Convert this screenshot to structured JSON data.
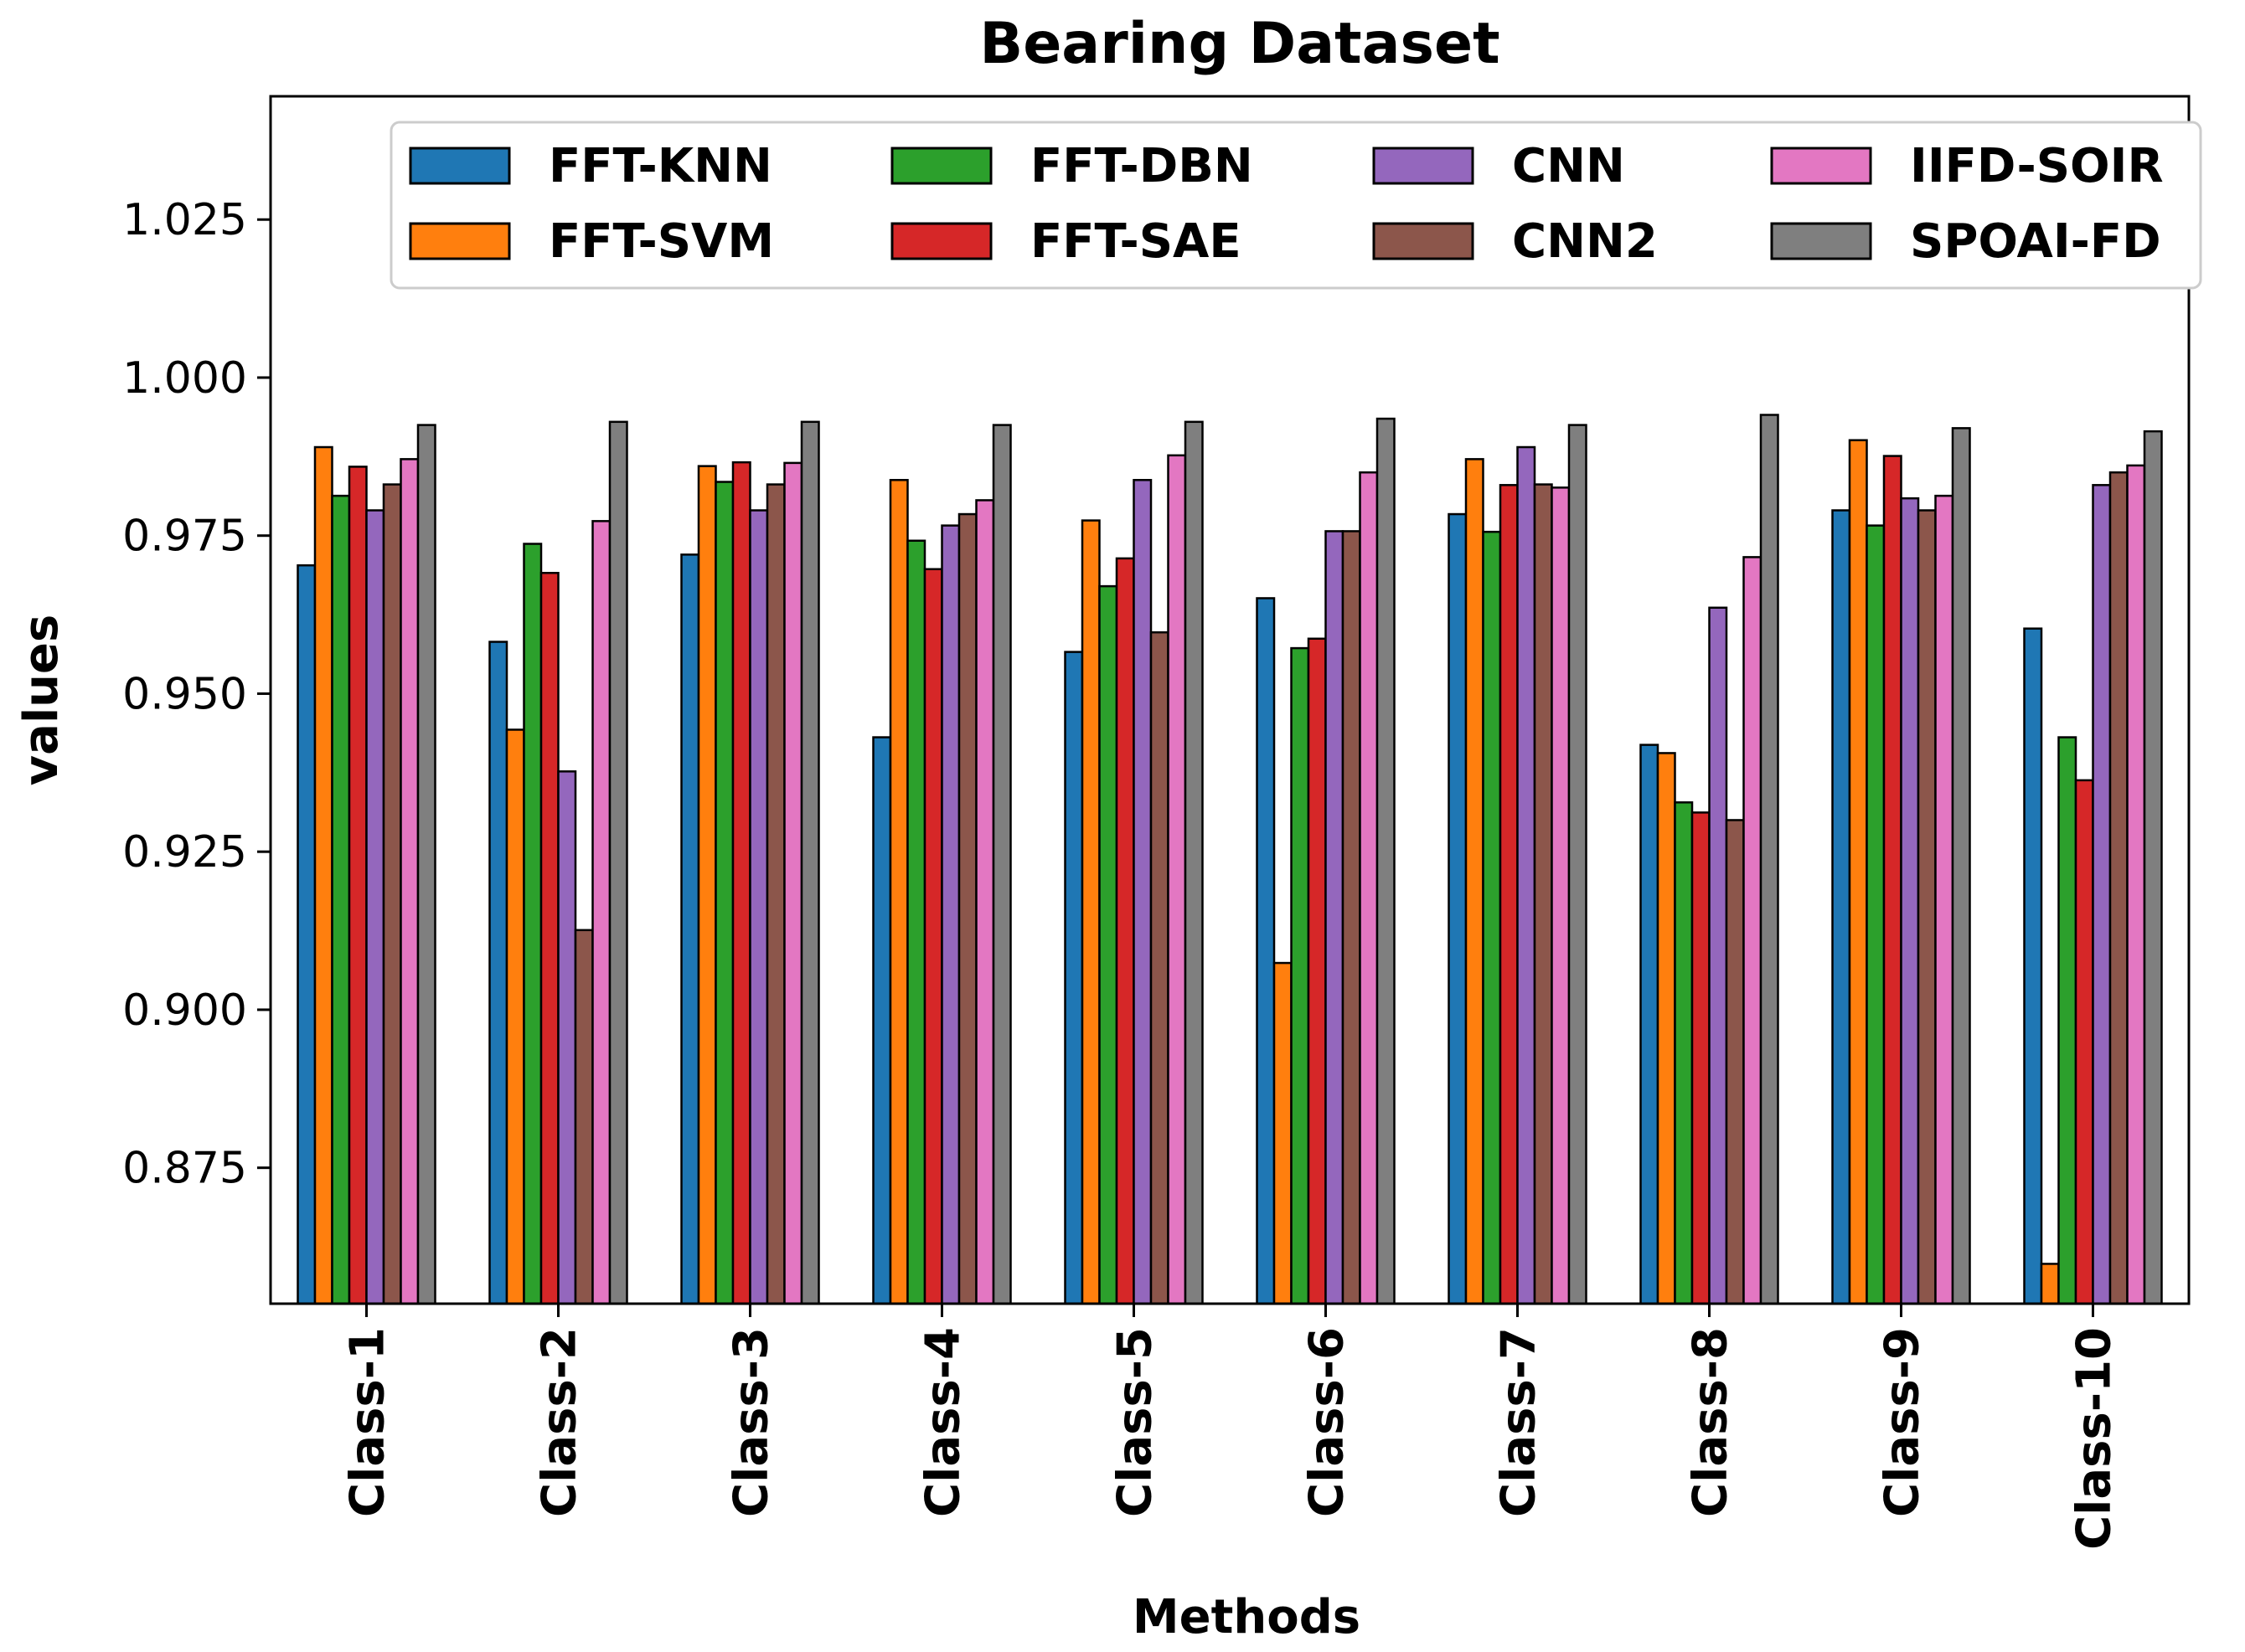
{
  "chart_data": {
    "type": "bar",
    "title": "Bearing Dataset",
    "xlabel": "Methods",
    "ylabel": "values",
    "ylim": [
      0.8535,
      1.0445
    ],
    "yticks": [
      0.875,
      0.9,
      0.925,
      0.95,
      0.975,
      1.0,
      1.025
    ],
    "ytick_labels": [
      "0.875",
      "0.900",
      "0.925",
      "0.950",
      "0.975",
      "1.000",
      "1.025"
    ],
    "legend_position": "upper center (4 columns)",
    "categories": [
      "Class-1",
      "Class-2",
      "Class-3",
      "Class-4",
      "Class-5",
      "Class-6",
      "Class-7",
      "Class-8",
      "Class-9",
      "Class-10"
    ],
    "series": [
      {
        "name": "FFT-KNN",
        "color": "#1f77b4",
        "values": [
          0.9703,
          0.9582,
          0.972,
          0.9431,
          0.9566,
          0.9651,
          0.9784,
          0.9419,
          0.979,
          0.9603
        ]
      },
      {
        "name": "FFT-SVM",
        "color": "#ff7f0e",
        "values": [
          0.989,
          0.9443,
          0.986,
          0.9838,
          0.9774,
          0.9074,
          0.9871,
          0.9406,
          0.9901,
          0.8598
        ]
      },
      {
        "name": "FFT-DBN",
        "color": "#2ca02c",
        "values": [
          0.9813,
          0.9737,
          0.9835,
          0.9742,
          0.967,
          0.9572,
          0.9756,
          0.9328,
          0.9766,
          0.9431
        ]
      },
      {
        "name": "FFT-SAE",
        "color": "#d62728",
        "values": [
          0.9859,
          0.9691,
          0.9866,
          0.9697,
          0.9714,
          0.9587,
          0.983,
          0.9312,
          0.9876,
          0.9363
        ]
      },
      {
        "name": "CNN",
        "color": "#9467bd",
        "values": [
          0.979,
          0.9377,
          0.979,
          0.9766,
          0.9838,
          0.9757,
          0.989,
          0.9636,
          0.9809,
          0.983
        ]
      },
      {
        "name": "CNN2",
        "color": "#8c564b",
        "values": [
          0.9831,
          0.9126,
          0.9831,
          0.9784,
          0.9597,
          0.9757,
          0.9831,
          0.93,
          0.979,
          0.985
        ]
      },
      {
        "name": "IIFD-SOIR",
        "color": "#e377c2",
        "values": [
          0.9871,
          0.9773,
          0.9865,
          0.9806,
          0.9877,
          0.985,
          0.9826,
          0.9716,
          0.9813,
          0.9861
        ]
      },
      {
        "name": "SPOAI-FD",
        "color": "#7f7f7f",
        "values": [
          0.9925,
          0.993,
          0.993,
          0.9925,
          0.993,
          0.9935,
          0.9925,
          0.9941,
          0.992,
          0.9915
        ]
      }
    ]
  }
}
